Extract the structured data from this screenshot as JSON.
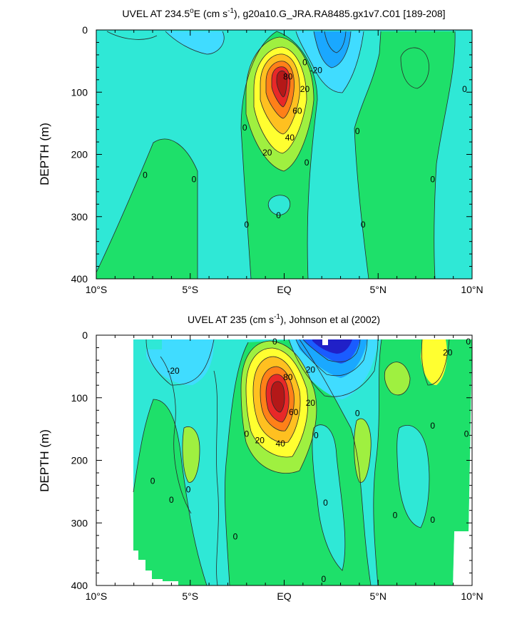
{
  "colors": {
    "cyan": "#2fe8d6",
    "teal_light": "#6fffe6",
    "sky": "#40dcff",
    "blue1": "#1aa8ff",
    "blue2": "#1a5cff",
    "navy": "#2020c8",
    "green": "#1ee06a",
    "lime": "#9ff040",
    "yellow": "#ffff30",
    "orange1": "#ffc020",
    "orange2": "#ff8018",
    "red": "#e82828",
    "darkred": "#b41818",
    "contour_line": "#2a2a2a"
  },
  "chart_data": [
    {
      "type": "contour",
      "title_parts": [
        "UVEL AT 234.5",
        "o",
        "E (cm s",
        "-1",
        "), g20a10.G_JRA.RA8485.gx1v7.C01 [189-208]"
      ],
      "ylabel": "DEPTH (m)",
      "xlabel": "",
      "x_ticks": [
        "10°S",
        "5°S",
        "EQ",
        "5°N",
        "10°N"
      ],
      "x_tick_values": [
        -10,
        -5,
        0,
        5,
        10
      ],
      "y_ticks": [
        "0",
        "100",
        "200",
        "300",
        "400"
      ],
      "y_tick_values": [
        0,
        100,
        200,
        300,
        400
      ],
      "xlim": [
        -10,
        10
      ],
      "ylim": [
        400,
        0
      ],
      "contour_interval": 10,
      "contour_labels": [
        {
          "text": "0",
          "lat": 1.1,
          "depth": 52
        },
        {
          "text": "-20",
          "lat": 1.7,
          "depth": 65
        },
        {
          "text": "80",
          "lat": 0.2,
          "depth": 75
        },
        {
          "text": "20",
          "lat": 1.1,
          "depth": 95
        },
        {
          "text": "0",
          "lat": 9.6,
          "depth": 95
        },
        {
          "text": "60",
          "lat": 0.7,
          "depth": 130
        },
        {
          "text": "0",
          "lat": -2.1,
          "depth": 157
        },
        {
          "text": "0",
          "lat": 3.9,
          "depth": 163
        },
        {
          "text": "40",
          "lat": 0.3,
          "depth": 173
        },
        {
          "text": "20",
          "lat": -0.9,
          "depth": 197
        },
        {
          "text": "0",
          "lat": 1.2,
          "depth": 213
        },
        {
          "text": "0",
          "lat": -7.4,
          "depth": 233
        },
        {
          "text": "0",
          "lat": -4.8,
          "depth": 240
        },
        {
          "text": "0",
          "lat": 7.9,
          "depth": 240
        },
        {
          "text": "0",
          "lat": -0.3,
          "depth": 298
        },
        {
          "text": "0",
          "lat": -2.0,
          "depth": 313
        },
        {
          "text": "0",
          "lat": 4.2,
          "depth": 313
        }
      ]
    },
    {
      "type": "contour",
      "title_parts": [
        "UVEL AT 235 (cm s",
        "-1",
        "), Johnson et al (2002)"
      ],
      "ylabel": "DEPTH (m)",
      "xlabel": "",
      "x_ticks": [
        "10°S",
        "5°S",
        "EQ",
        "5°N",
        "10°N"
      ],
      "x_tick_values": [
        -10,
        -5,
        0,
        5,
        10
      ],
      "y_ticks": [
        "0",
        "100",
        "200",
        "300",
        "400"
      ],
      "y_tick_values": [
        0,
        100,
        200,
        300,
        400
      ],
      "xlim": [
        -10,
        10
      ],
      "ylim": [
        400,
        0
      ],
      "contour_interval": 10,
      "contour_labels": [
        {
          "text": "0",
          "lat": -0.5,
          "depth": 10
        },
        {
          "text": "0",
          "lat": 9.8,
          "depth": 10
        },
        {
          "text": "20",
          "lat": 8.7,
          "depth": 28
        },
        {
          "text": "-20",
          "lat": -5.9,
          "depth": 57
        },
        {
          "text": "20",
          "lat": 1.4,
          "depth": 55
        },
        {
          "text": "80",
          "lat": 0.2,
          "depth": 67
        },
        {
          "text": "20",
          "lat": 1.4,
          "depth": 108
        },
        {
          "text": "0",
          "lat": 3.9,
          "depth": 125
        },
        {
          "text": "60",
          "lat": 0.5,
          "depth": 123
        },
        {
          "text": "0",
          "lat": 7.9,
          "depth": 145
        },
        {
          "text": "0",
          "lat": -2.0,
          "depth": 158
        },
        {
          "text": "0",
          "lat": 1.7,
          "depth": 160
        },
        {
          "text": "0",
          "lat": 9.7,
          "depth": 158
        },
        {
          "text": "20",
          "lat": -1.3,
          "depth": 168
        },
        {
          "text": "40",
          "lat": -0.2,
          "depth": 173
        },
        {
          "text": "0",
          "lat": -7.0,
          "depth": 233
        },
        {
          "text": "0",
          "lat": -5.1,
          "depth": 247
        },
        {
          "text": "0",
          "lat": -6.0,
          "depth": 263
        },
        {
          "text": "0",
          "lat": 2.2,
          "depth": 268
        },
        {
          "text": "0",
          "lat": 5.9,
          "depth": 288
        },
        {
          "text": "0",
          "lat": 7.9,
          "depth": 295
        },
        {
          "text": "0",
          "lat": -2.6,
          "depth": 322
        },
        {
          "text": "0",
          "lat": 2.1,
          "depth": 390
        }
      ]
    }
  ]
}
